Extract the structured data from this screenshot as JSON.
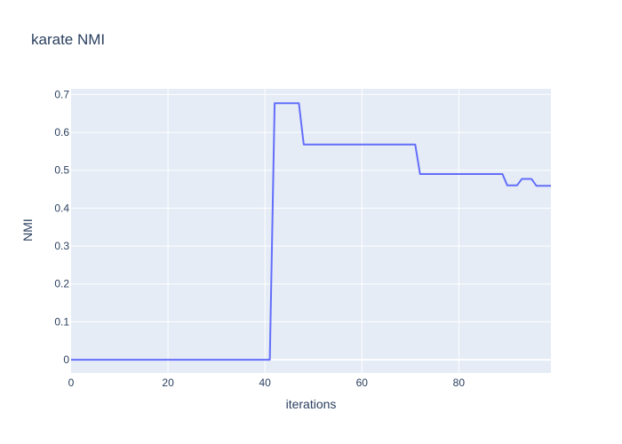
{
  "chart_data": {
    "type": "line",
    "title": "karate NMI",
    "xlabel": "iterations",
    "ylabel": "NMI",
    "xlim": [
      0,
      99
    ],
    "ylim": [
      -0.035,
      0.715
    ],
    "xticks": [
      0,
      20,
      40,
      60,
      80
    ],
    "yticks": [
      0,
      0.1,
      0.2,
      0.3,
      0.4,
      0.5,
      0.6,
      0.7
    ],
    "grid": true,
    "colors": {
      "plot_bg": "#e5ecf6",
      "grid": "#ffffff",
      "line": "#636efa",
      "text": "#2a3f5f"
    },
    "series": [
      {
        "x": [
          0,
          41,
          42,
          47,
          48,
          71,
          72,
          89,
          90,
          92,
          93,
          95,
          96,
          99
        ],
        "values": [
          0,
          0,
          0.677,
          0.677,
          0.568,
          0.568,
          0.49,
          0.49,
          0.46,
          0.46,
          0.477,
          0.477,
          0.459,
          0.459
        ]
      }
    ]
  }
}
